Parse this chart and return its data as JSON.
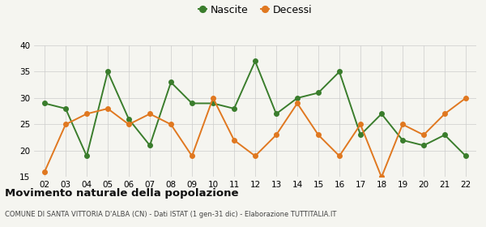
{
  "years": [
    "02",
    "03",
    "04",
    "05",
    "06",
    "07",
    "08",
    "09",
    "10",
    "11",
    "12",
    "13",
    "14",
    "15",
    "16",
    "17",
    "18",
    "19",
    "20",
    "21",
    "22"
  ],
  "nascite": [
    29,
    28,
    19,
    35,
    26,
    21,
    33,
    29,
    29,
    28,
    37,
    27,
    30,
    31,
    35,
    23,
    27,
    22,
    21,
    23,
    19
  ],
  "decessi": [
    16,
    25,
    27,
    28,
    25,
    27,
    25,
    19,
    30,
    22,
    19,
    23,
    29,
    23,
    19,
    25,
    15,
    25,
    23,
    27,
    30
  ],
  "nascite_color": "#3a7d2c",
  "decessi_color": "#e07820",
  "bg_color": "#f5f5f0",
  "grid_color": "#cccccc",
  "ylim": [
    15,
    40
  ],
  "yticks": [
    15,
    20,
    25,
    30,
    35,
    40
  ],
  "title": "Movimento naturale della popolazione",
  "subtitle": "COMUNE DI SANTA VITTORIA D'ALBA (CN) - Dati ISTAT (1 gen-31 dic) - Elaborazione TUTTITALIA.IT",
  "legend_nascite": "Nascite",
  "legend_decessi": "Decessi",
  "marker_size": 4,
  "line_width": 1.4
}
